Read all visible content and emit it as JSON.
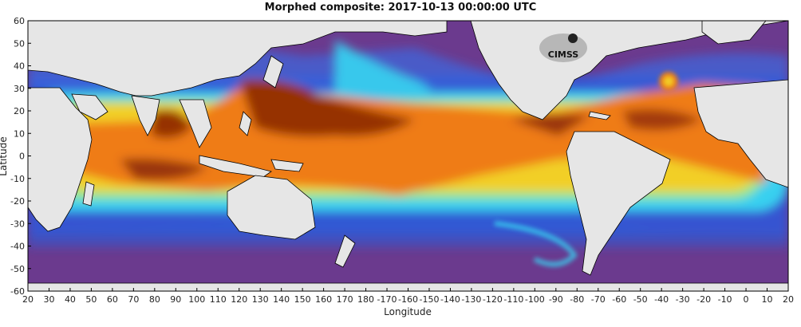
{
  "title": "Morphed composite: 2017-10-13 00:00:00 UTC",
  "xlabel": "Longitude",
  "ylabel": "Latitude",
  "logo_text": "CIMSS",
  "x_ticks": [
    "20",
    "30",
    "40",
    "50",
    "60",
    "70",
    "80",
    "90",
    "100",
    "110",
    "120",
    "130",
    "140",
    "150",
    "160",
    "170",
    "180",
    "-170",
    "-160",
    "-150",
    "-140",
    "-130",
    "-120",
    "-110",
    "-100",
    "-90",
    "-80",
    "-70",
    "-60",
    "-50",
    "-40",
    "-30",
    "-20",
    "-10",
    "0",
    "10",
    "20"
  ],
  "y_ticks": [
    "60",
    "50",
    "40",
    "30",
    "20",
    "10",
    "0",
    "-10",
    "-20",
    "-30",
    "-40",
    "-50",
    "-60"
  ],
  "colors": {
    "land": "#e6e6e6",
    "coast": "#000000",
    "ocean_base": "#6b3a8e",
    "dry_high": "#8b3aa0",
    "blue": "#2d5fe0",
    "cyan": "#40d8f0",
    "green": "#8ef08a",
    "yellow": "#f5d020",
    "orange": "#f07f10",
    "brown": "#9a3004"
  }
}
